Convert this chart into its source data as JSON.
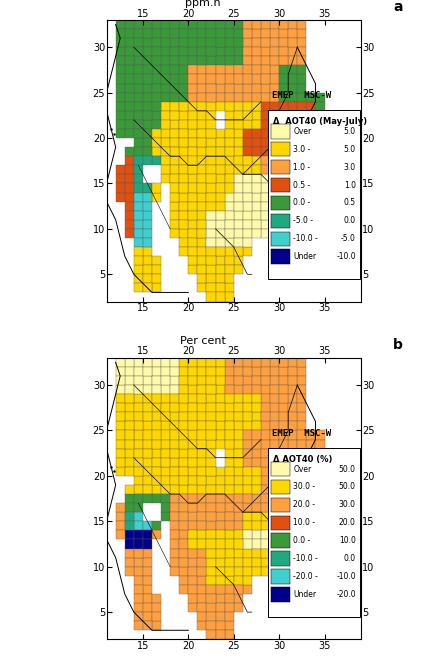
{
  "panel_a": {
    "title": "ppm.h",
    "label": "a",
    "legend_title": "Δ  AOT40 (May-July)",
    "legend_colors": [
      "#FFFAAA",
      "#FFD700",
      "#FFA040",
      "#E05010",
      "#3A9A3A",
      "#20A880",
      "#40CFCF",
      "#00008B"
    ],
    "legend_labels_left": [
      "Over",
      "3.0 -",
      "1.0 -",
      "0.5 -",
      "0.0 -",
      "-5.0 -",
      "-10.0 -",
      "Under"
    ],
    "legend_labels_right": [
      "5.0",
      "5.0",
      "3.0",
      "1.0",
      "0.5",
      "0.0",
      "-5.0",
      "-10.0"
    ],
    "emep_text": "EMEP  MSC-W",
    "xlim": [
      11,
      39
    ],
    "ylim": [
      2,
      33
    ],
    "xticks": [
      15,
      20,
      25,
      30,
      35
    ],
    "yticks": [
      5,
      10,
      15,
      20,
      25,
      30
    ]
  },
  "panel_b": {
    "title": "Per cent",
    "label": "b",
    "legend_title": "Δ AOT40 (%)",
    "legend_colors": [
      "#FFFAAA",
      "#FFD700",
      "#FFA040",
      "#E05010",
      "#3A9A3A",
      "#20A880",
      "#40CFCF",
      "#00008B"
    ],
    "legend_labels_left": [
      "Over",
      "30.0 -",
      "20.0 -",
      "10.0 -",
      "0.0 -",
      "-10.0 -",
      "-20.0 -",
      "Under"
    ],
    "legend_labels_right": [
      "50.0",
      "50.0",
      "30.0",
      "20.0",
      "10.0",
      "0.0",
      "-10.0",
      "-20.0"
    ],
    "emep_text": "EMEP  MSC-W",
    "xlim": [
      11,
      39
    ],
    "ylim": [
      2,
      33
    ],
    "xticks": [
      15,
      20,
      25,
      30,
      35
    ],
    "yticks": [
      5,
      10,
      15,
      20,
      25,
      30
    ]
  },
  "fig_width": 4.41,
  "fig_height": 6.66,
  "coastline_color": "#000000",
  "grid_edge_color": "#555555",
  "grid_lw": 0.25
}
